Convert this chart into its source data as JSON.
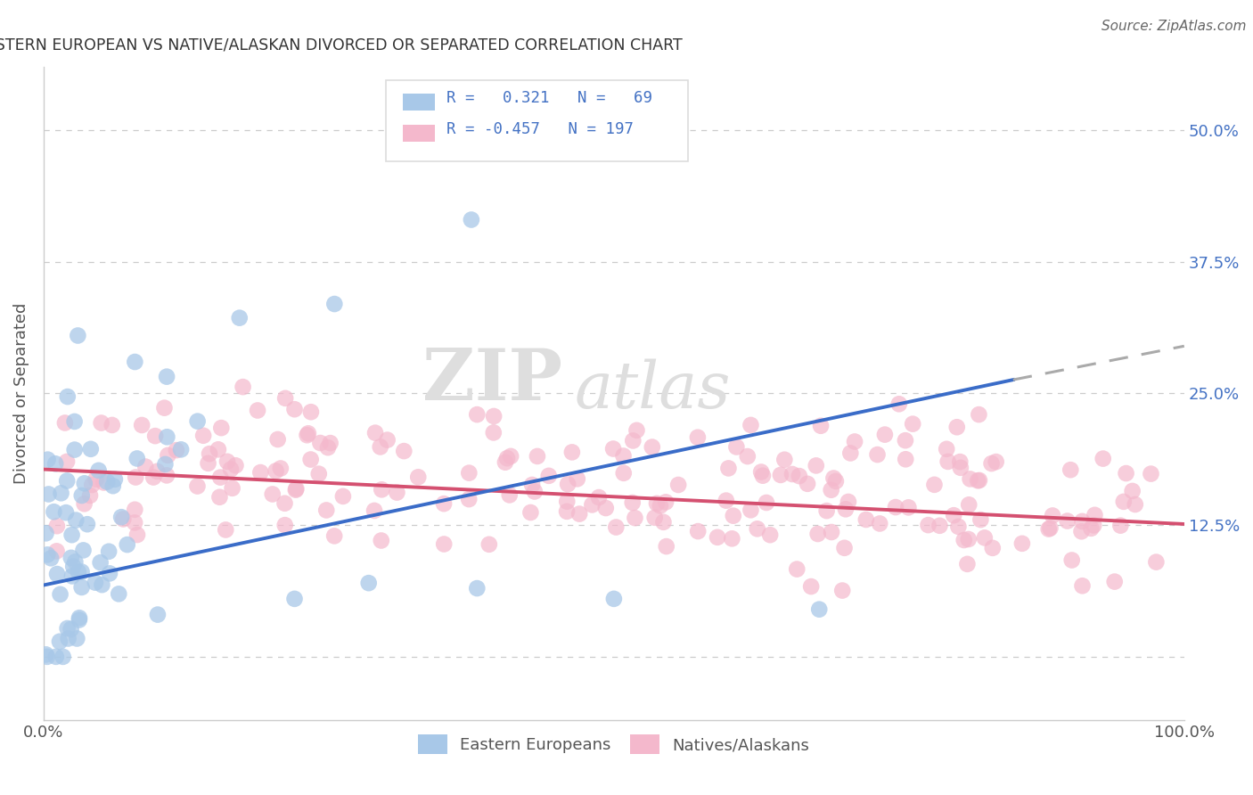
{
  "title": "EASTERN EUROPEAN VS NATIVE/ALASKAN DIVORCED OR SEPARATED CORRELATION CHART",
  "source": "Source: ZipAtlas.com",
  "ylabel": "Divorced or Separated",
  "xlim": [
    0.0,
    1.0
  ],
  "ylim": [
    -0.06,
    0.56
  ],
  "yticks": [
    0.0,
    0.125,
    0.25,
    0.375,
    0.5
  ],
  "yticklabels": [
    "",
    "12.5%",
    "25.0%",
    "37.5%",
    "50.0%"
  ],
  "xticks": [
    0.0,
    0.25,
    0.5,
    0.75,
    1.0
  ],
  "xticklabels": [
    "0.0%",
    "",
    "",
    "",
    "100.0%"
  ],
  "blue_R": 0.321,
  "blue_N": 69,
  "pink_R": -0.457,
  "pink_N": 197,
  "blue_fill": "#a8c8e8",
  "pink_fill": "#f4b8cc",
  "trend_blue": "#3a6cc8",
  "trend_pink": "#d45070",
  "trend_gray": "#aaaaaa",
  "legend_label_blue": "Eastern Europeans",
  "legend_label_pink": "Natives/Alaskans",
  "watermark_zip": "ZIP",
  "watermark_atlas": "atlas",
  "title_color": "#333333",
  "background_color": "#ffffff",
  "grid_color": "#cccccc",
  "right_tick_color": "#4472c4",
  "legend_box_color": "#dddddd"
}
